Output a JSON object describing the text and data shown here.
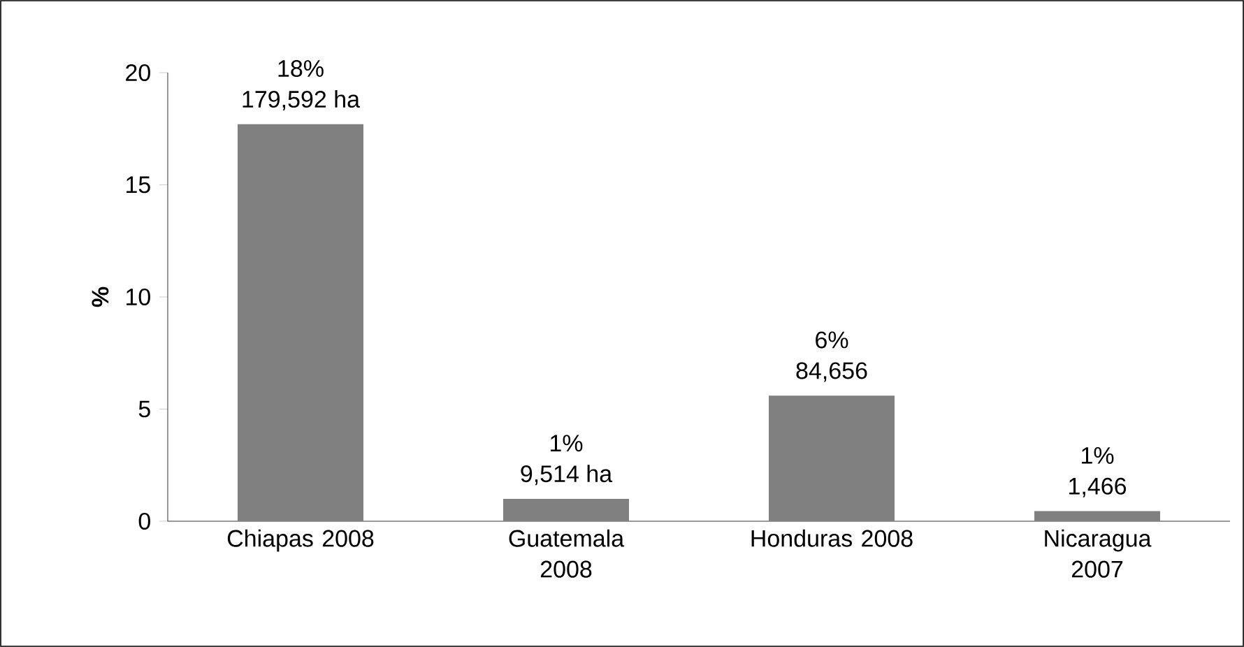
{
  "chart_data": {
    "type": "bar",
    "ylabel": "%",
    "categories": [
      "Chiapas 2008",
      "Guatemala 2008",
      "Honduras 2008",
      "Nicaragua 2007"
    ],
    "values": [
      17.7,
      1.0,
      5.6,
      0.45
    ],
    "color": "#808080",
    "annotations": [
      {
        "text": "18%",
        "x": "Chiapas 2008",
        "y": 17.7
      },
      {
        "text": "179,592 ha",
        "x": "Chiapas 2008",
        "y": 17.7
      },
      {
        "text": "1%",
        "x": "Guatemala 2008",
        "y": 1.0
      },
      {
        "text": "9,514 ha",
        "x": "Guatemala 2008",
        "y": 1.0
      },
      {
        "text": "6%",
        "x": "Honduras 2008",
        "y": 5.6
      },
      {
        "text": "84,656",
        "x": "Honduras 2008",
        "y": 5.6
      },
      {
        "text": "1%",
        "x": "Nicaragua 2007",
        "y": 0.45
      },
      {
        "text": "1,466",
        "x": "Nicaragua 2007",
        "y": 0.45
      }
    ],
    "ylim": [
      0,
      20
    ],
    "yticks": [
      0,
      5,
      10,
      15,
      20
    ],
    "grid": false
  }
}
